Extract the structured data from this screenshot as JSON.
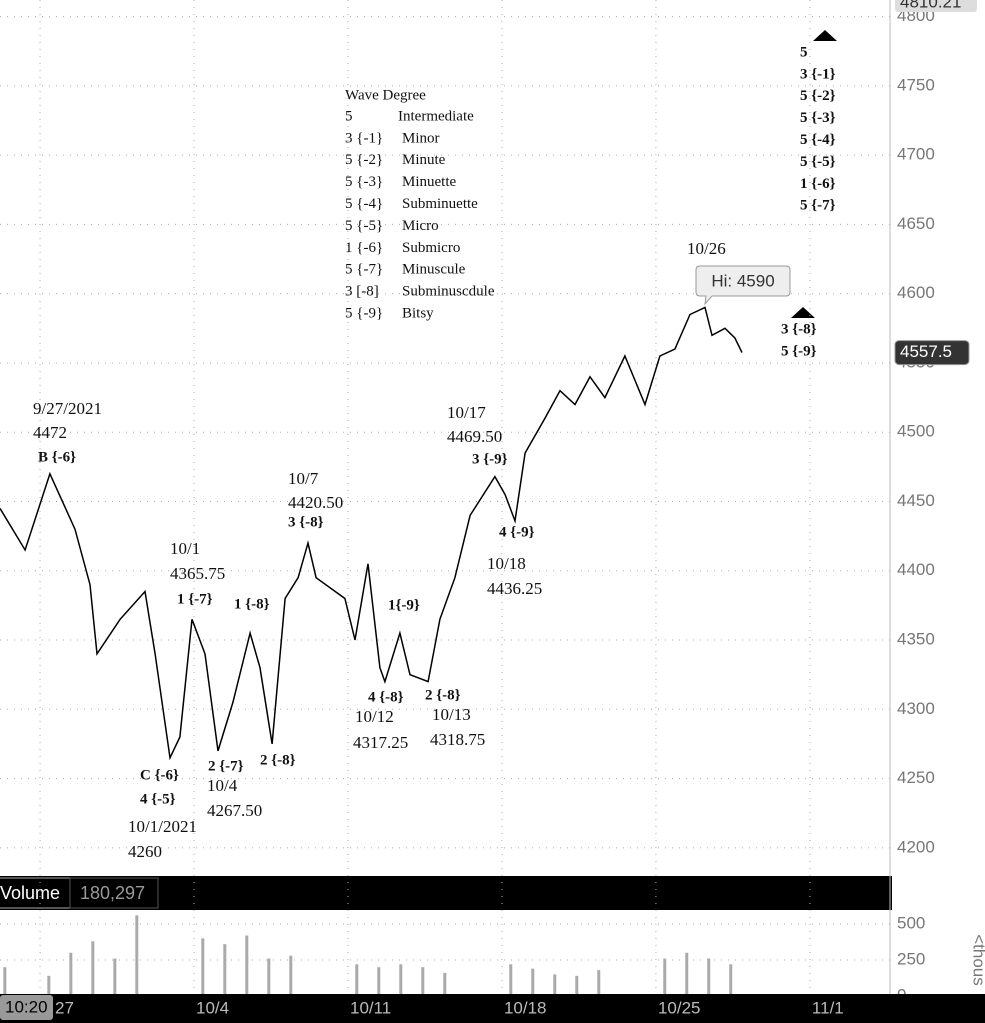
{
  "chart_data": [
    {
      "type": "line",
      "color": "#000000",
      "x": [
        -1.82,
        -0.68,
        0.45,
        1.59,
        2.27,
        2.59,
        3.64,
        4.77,
        5.23,
        5.91,
        6.36,
        6.91,
        7.5,
        8.09,
        8.77,
        9.55,
        10.0,
        10.55,
        11.14,
        11.73,
        12.18,
        12.55,
        13.86,
        14.32,
        14.91,
        15.45,
        15.68,
        16.36,
        16.82,
        17.64,
        18.18,
        18.86,
        19.55,
        20.68,
        21.14,
        21.59,
        22.05,
        22.95,
        23.64,
        24.32,
        25.0,
        25.68,
        26.59,
        27.5,
        28.18,
        28.86,
        29.55,
        30.23,
        30.55,
        31.14,
        31.59,
        31.91
      ],
      "values": [
        4445,
        4415,
        4470,
        4430,
        4390,
        4340,
        4365,
        4385,
        4340,
        4265,
        4280,
        4365,
        4340,
        4270,
        4305,
        4355,
        4330,
        4275,
        4380,
        4395,
        4420,
        4395,
        4380,
        4350,
        4405,
        4330,
        4320,
        4355,
        4325,
        4320,
        4365,
        4395,
        4440,
        4468,
        4455,
        4436,
        4485,
        4510,
        4530,
        4520,
        4540,
        4525,
        4555,
        4520,
        4555,
        4560,
        4585,
        4590,
        4570,
        4575,
        4568,
        4557.5
      ],
      "xlim": [
        -1.82,
        38.64
      ],
      "xticks": [
        {
          "value": 0,
          "label": "27"
        },
        {
          "value": 7,
          "label": "10/4"
        },
        {
          "value": 14,
          "label": "10/11"
        },
        {
          "value": 21,
          "label": "10/18"
        },
        {
          "value": 28,
          "label": "10/25"
        },
        {
          "value": 35,
          "label": "11/1"
        }
      ],
      "ylim": [
        4184,
        4812
      ],
      "yticks": [
        4200,
        4250,
        4300,
        4350,
        4400,
        4450,
        4500,
        4550,
        4600,
        4650,
        4700,
        4750,
        4800
      ],
      "grid": true,
      "last_value": 4557.5,
      "top_value": 4810.21,
      "hi_label": "Hi: 4590",
      "time_label": "10:20",
      "annotations": [
        "9/27/2021",
        "4472",
        "B {-6}",
        "10/1",
        "4365.75",
        "1 {-7}",
        "1 {-8}",
        "10/7",
        "4420.50",
        "3 {-8}",
        "1{-9}",
        "10/17",
        "4469.50",
        "3 {-9}",
        "4 {-9}",
        "10/18",
        "4436.25",
        "4 {-8}",
        "2 {-8}",
        "10/12",
        "4317.25",
        "10/13",
        "4318.75",
        "C {-6}",
        "4 {-5}",
        "2 {-7}",
        "2 {-8}",
        "10/4",
        "4267.50",
        "10/1/2021",
        "4260",
        "10/26"
      ],
      "wave_degree": {
        "title": "Wave Degree",
        "rows": [
          [
            "5",
            "Intermediate"
          ],
          [
            "3 {-1}",
            "Minor"
          ],
          [
            "5 {-2}",
            "Minute"
          ],
          [
            "5 {-3}",
            "Minuette"
          ],
          [
            "5 {-4}",
            "Subminuette"
          ],
          [
            "5 {-5}",
            "Micro"
          ],
          [
            "1 {-6}",
            "Submicro"
          ],
          [
            "5 {-7}",
            "Minuscule"
          ],
          [
            "3 [-8]",
            "Subminuscdule"
          ],
          [
            "5 {-9}",
            "Bitsy"
          ]
        ]
      },
      "wave_stack_top": [
        "5",
        "3 {-1}",
        "5 {-2}",
        "5 {-3}",
        "5 {-4}",
        "5 {-5}",
        "1 {-6}",
        "5 {-7}"
      ],
      "wave_stack_right": [
        "3 {-8}",
        "5 {-9}"
      ]
    },
    {
      "type": "bar",
      "title": "Volume",
      "subtitle": "180,297",
      "color": "#aaaaaa",
      "y_axis_label": "<thous",
      "x": [
        -1.6,
        0.4,
        1.4,
        2.4,
        3.4,
        4.4,
        7.4,
        8.4,
        9.4,
        10.4,
        11.4,
        14.4,
        15.4,
        16.4,
        17.4,
        18.4,
        21.4,
        22.4,
        23.4,
        24.4,
        25.4,
        28.4,
        29.4,
        30.4,
        31.4
      ],
      "values": [
        200,
        140,
        300,
        380,
        260,
        560,
        400,
        360,
        420,
        260,
        280,
        220,
        200,
        220,
        200,
        160,
        220,
        190,
        150,
        140,
        180,
        260,
        300,
        260,
        220
      ],
      "ylim": [
        0,
        597
      ],
      "yticks": [
        0,
        250,
        500
      ]
    }
  ]
}
